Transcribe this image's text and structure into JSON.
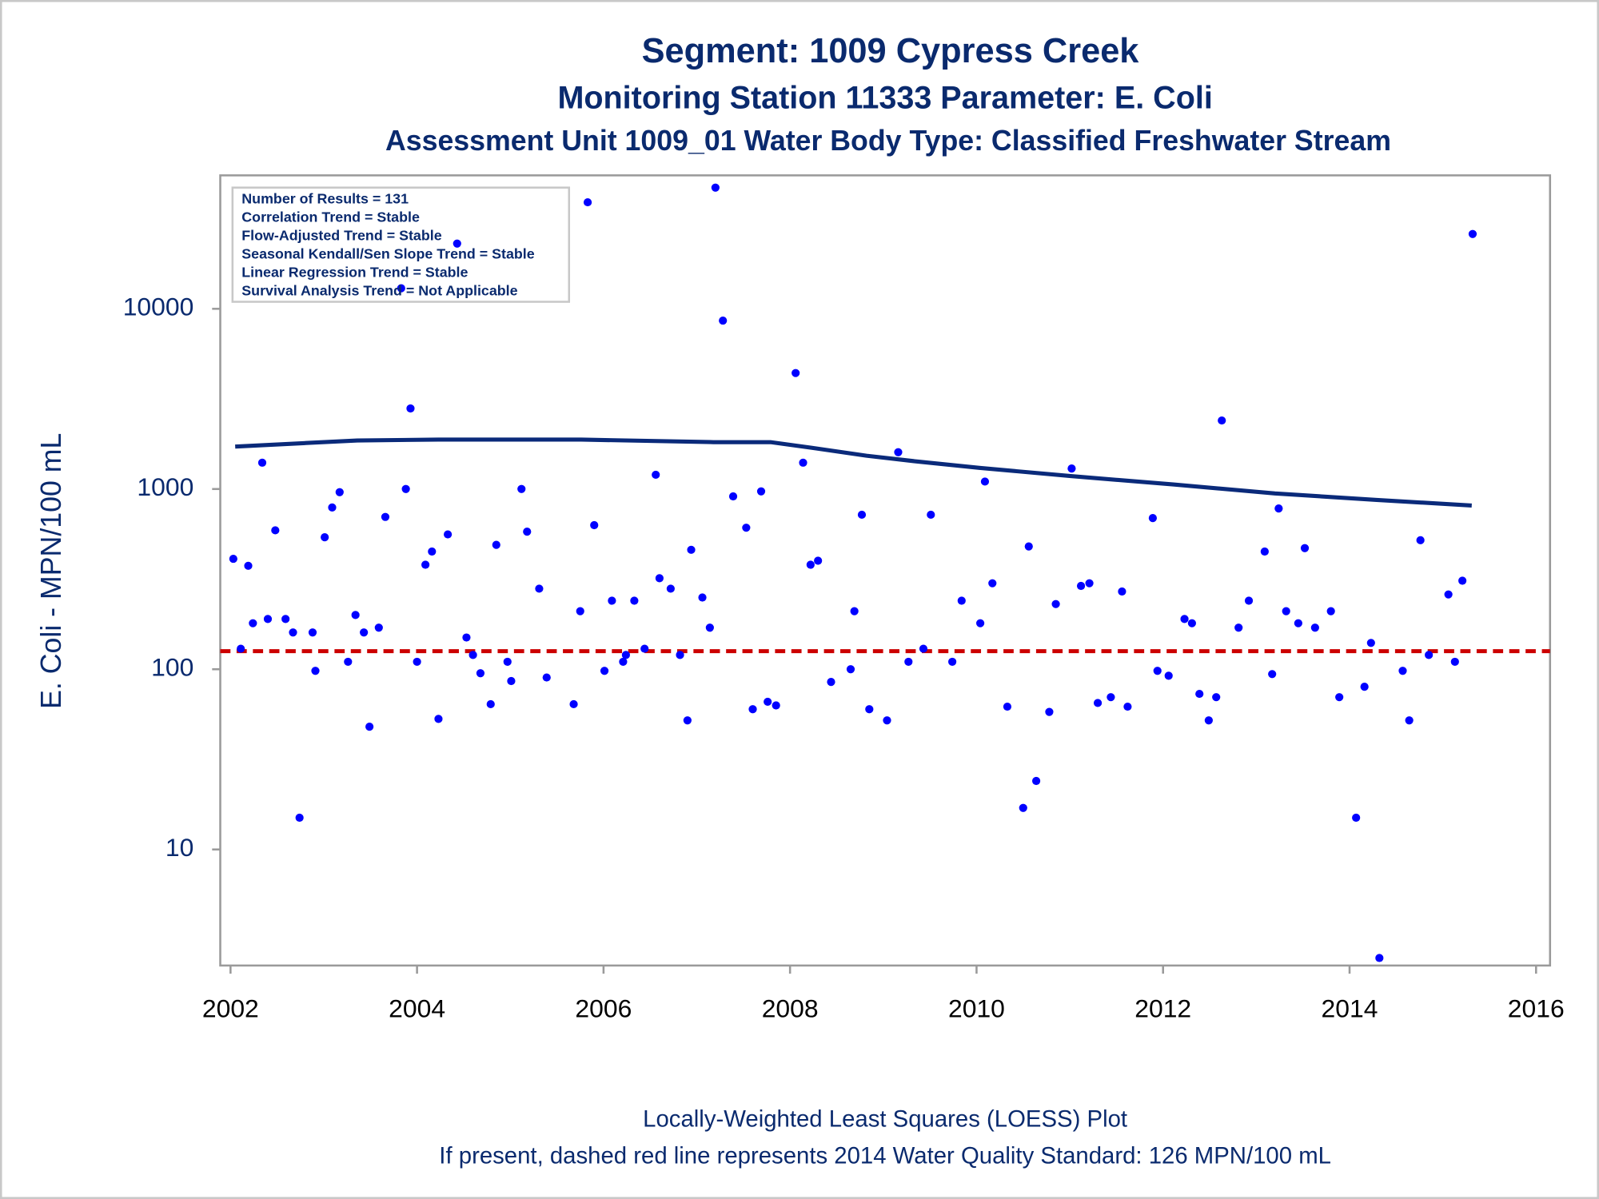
{
  "chart_data": {
    "type": "scatter",
    "title": "Segment: 1009  Cypress Creek",
    "subtitles": [
      "Monitoring Station 11333 Parameter: E. Coli",
      "Assessment Unit 1009_01   Water Body Type: Classified Freshwater Stream"
    ],
    "y_label": "E. Coli - MPN/100 mL",
    "footnotes": [
      "Locally-Weighted Least Squares (LOESS) Plot",
      "If present, dashed red line represents 2014 Water Quality Standard: 126 MPN/100 mL"
    ],
    "annotations": [
      "Number of Results = 131",
      "Correlation Trend = Stable",
      "Flow-Adjusted Trend = Stable",
      "Seasonal Kendall/Sen Slope Trend = Stable",
      "Linear Regression Trend = Stable",
      "Survival Analysis Trend = Not Applicable"
    ],
    "yscale": "log",
    "grid": false,
    "xlim": [
      2001.89,
      2016.15
    ],
    "xticks": [
      2002,
      2004,
      2006,
      2008,
      2010,
      2012,
      2014,
      2016
    ],
    "ylim": [
      2.27,
      55000
    ],
    "yticks": [
      10,
      100,
      1000,
      10000
    ],
    "hlines": [
      {
        "value": 126,
        "color": "#cc0000",
        "style": "dashed"
      }
    ],
    "series": [
      {
        "type": "scatter",
        "color": "#0000ff",
        "x": [
          2002.03,
          2002.11,
          2002.19,
          2002.24,
          2002.34,
          2002.4,
          2002.48,
          2002.59,
          2002.67,
          2002.74,
          2002.88,
          2002.91,
          2003.01,
          2003.09,
          2003.17,
          2003.26,
          2003.34,
          2003.43,
          2003.49,
          2003.59,
          2003.66,
          2003.83,
          2003.88,
          2003.93,
          2004.0,
          2004.09,
          2004.16,
          2004.23,
          2004.33,
          2004.43,
          2004.53,
          2004.6,
          2004.68,
          2004.79,
          2004.85,
          2004.97,
          2005.01,
          2005.12,
          2005.18,
          2005.31,
          2005.39,
          2005.68,
          2005.75,
          2005.83,
          2005.9,
          2006.01,
          2006.09,
          2006.21,
          2006.24,
          2006.33,
          2006.44,
          2006.56,
          2006.6,
          2006.72,
          2006.82,
          2006.9,
          2006.94,
          2007.06,
          2007.14,
          2007.2,
          2007.28,
          2007.39,
          2007.53,
          2007.6,
          2007.69,
          2007.76,
          2007.85,
          2008.06,
          2008.14,
          2008.22,
          2008.3,
          2008.44,
          2008.65,
          2008.69,
          2008.77,
          2008.85,
          2009.04,
          2009.16,
          2009.27,
          2009.43,
          2009.51,
          2009.74,
          2009.84,
          2010.04,
          2010.09,
          2010.17,
          2010.33,
          2010.5,
          2010.56,
          2010.64,
          2010.78,
          2010.85,
          2011.02,
          2011.12,
          2011.21,
          2011.3,
          2011.44,
          2011.56,
          2011.62,
          2011.89,
          2011.94,
          2012.06,
          2012.23,
          2012.31,
          2012.39,
          2012.49,
          2012.57,
          2012.63,
          2012.81,
          2012.92,
          2013.09,
          2013.17,
          2013.24,
          2013.32,
          2013.45,
          2013.52,
          2013.63,
          2013.8,
          2013.89,
          2014.07,
          2014.16,
          2014.23,
          2014.32,
          2014.57,
          2014.64,
          2014.76,
          2014.85,
          2015.06,
          2015.13,
          2015.21,
          2015.32
        ],
        "values": [
          410,
          130,
          375,
          180,
          1400,
          190,
          590,
          190,
          160,
          15,
          160,
          98,
          540,
          790,
          960,
          110,
          200,
          160,
          48,
          170,
          700,
          13000,
          1000,
          2800,
          110,
          380,
          450,
          53,
          560,
          23000,
          150,
          120,
          95,
          64,
          490,
          110,
          86,
          1000,
          580,
          280,
          90,
          64,
          210,
          39000,
          630,
          98,
          240,
          110,
          120,
          240,
          130,
          1200,
          320,
          280,
          120,
          52,
          460,
          250,
          170,
          47000,
          8600,
          910,
          610,
          60,
          970,
          66,
          63,
          4400,
          1400,
          380,
          400,
          85,
          100,
          210,
          720,
          60,
          52,
          1600,
          110,
          130,
          720,
          110,
          240,
          180,
          1100,
          300,
          62,
          17,
          480,
          24,
          58,
          230,
          1300,
          290,
          300,
          65,
          70,
          270,
          62,
          690,
          98,
          92,
          190,
          180,
          73,
          52,
          70,
          2400,
          170,
          240,
          450,
          94,
          780,
          210,
          180,
          470,
          170,
          210,
          70,
          15,
          80,
          140,
          2.5,
          98,
          52,
          520,
          120,
          260,
          110,
          310,
          26000
        ]
      },
      {
        "type": "line",
        "color": "#0a2a7a",
        "x": [
          2002.05,
          2002.81,
          2003.36,
          2004.23,
          2005.76,
          2007.18,
          2007.79,
          2008.28,
          2008.82,
          2009.37,
          2010.03,
          2011.01,
          2012.11,
          2013.2,
          2014.29,
          2015.31
        ],
        "values": [
          1720,
          1800,
          1860,
          1880,
          1880,
          1820,
          1820,
          1680,
          1530,
          1420,
          1310,
          1180,
          1060,
          945,
          870,
          810
        ]
      }
    ]
  }
}
